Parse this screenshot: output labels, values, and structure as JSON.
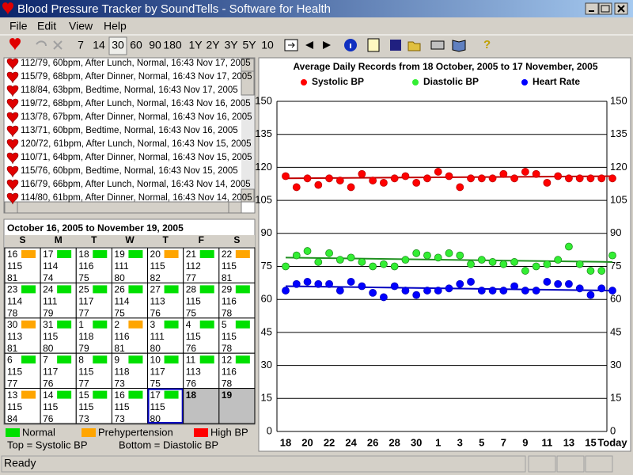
{
  "window": {
    "title": "Blood Pressure Tracker by SoundTells - Software for Health",
    "menu": [
      "File",
      "Edit",
      "View",
      "Help"
    ],
    "toolbar": [
      "7",
      "14",
      "30",
      "60",
      "90",
      "180",
      "1Y",
      "2Y",
      "3Y",
      "5Y",
      "10"
    ],
    "status": "Ready"
  },
  "records": [
    "112/79, 60bpm, After Lunch, Normal, 16:43 Nov 17, 2005",
    "115/79, 68bpm, After Dinner, Normal, 16:43 Nov 17, 2005",
    "118/84, 63bpm, Bedtime, Normal, 16:43 Nov 17, 2005",
    "119/72, 68bpm, After Lunch, Normal, 16:43 Nov 16, 2005",
    "113/78, 67bpm, After Dinner, Normal, 16:43 Nov 16, 2005",
    "113/71, 60bpm, Bedtime, Normal, 16:43 Nov 16, 2005",
    "120/72, 61bpm, After Lunch, Normal, 16:43 Nov 15, 2005",
    "110/71, 64bpm, After Dinner, Normal, 16:43 Nov 15, 2005",
    "115/76, 60bpm, Bedtime, Normal, 16:43 Nov 15, 2005",
    "116/79, 66bpm, After Lunch, Normal, 16:43 Nov 14, 2005",
    "114/80, 61bpm, After Dinner, Normal, 16:43 Nov 14, 2005"
  ],
  "calendar": {
    "title": "October 16, 2005 to November 19, 2005",
    "weekdays": [
      "S",
      "M",
      "T",
      "W",
      "T",
      "F",
      "S"
    ],
    "selected": 32,
    "cells": [
      {
        "day": 16,
        "sys": 115,
        "dia": 81,
        "color": "#ffa500"
      },
      {
        "day": 17,
        "sys": 114,
        "dia": 74,
        "color": "#00e000"
      },
      {
        "day": 18,
        "sys": 116,
        "dia": 75,
        "color": "#00e000"
      },
      {
        "day": 19,
        "sys": 111,
        "dia": 80,
        "color": "#00e000"
      },
      {
        "day": 20,
        "sys": 115,
        "dia": 82,
        "color": "#ffa500"
      },
      {
        "day": 21,
        "sys": 112,
        "dia": 77,
        "color": "#00e000"
      },
      {
        "day": 22,
        "sys": 115,
        "dia": 81,
        "color": "#ffa500"
      },
      {
        "day": 23,
        "sys": 114,
        "dia": 78,
        "color": "#00e000"
      },
      {
        "day": 24,
        "sys": 111,
        "dia": 79,
        "color": "#00e000"
      },
      {
        "day": 25,
        "sys": 117,
        "dia": 77,
        "color": "#00e000"
      },
      {
        "day": 26,
        "sys": 114,
        "dia": 75,
        "color": "#00e000"
      },
      {
        "day": 27,
        "sys": 113,
        "dia": 76,
        "color": "#00e000"
      },
      {
        "day": 28,
        "sys": 115,
        "dia": 75,
        "color": "#00e000"
      },
      {
        "day": 29,
        "sys": 116,
        "dia": 78,
        "color": "#00e000"
      },
      {
        "day": 30,
        "sys": 113,
        "dia": 81,
        "color": "#ffa500"
      },
      {
        "day": 31,
        "sys": 115,
        "dia": 80,
        "color": "#00e000"
      },
      {
        "day": 1,
        "sys": 118,
        "dia": 79,
        "color": "#00e000"
      },
      {
        "day": 2,
        "sys": 116,
        "dia": 81,
        "color": "#ffa500"
      },
      {
        "day": 3,
        "sys": 111,
        "dia": 80,
        "color": "#00e000"
      },
      {
        "day": 4,
        "sys": 115,
        "dia": 76,
        "color": "#00e000"
      },
      {
        "day": 5,
        "sys": 115,
        "dia": 78,
        "color": "#00e000"
      },
      {
        "day": 6,
        "sys": 115,
        "dia": 77,
        "color": "#00e000"
      },
      {
        "day": 7,
        "sys": 117,
        "dia": 76,
        "color": "#00e000"
      },
      {
        "day": 8,
        "sys": 115,
        "dia": 77,
        "color": "#00e000"
      },
      {
        "day": 9,
        "sys": 118,
        "dia": 73,
        "color": "#00e000"
      },
      {
        "day": 10,
        "sys": 117,
        "dia": 75,
        "color": "#00e000"
      },
      {
        "day": 11,
        "sys": 113,
        "dia": 76,
        "color": "#00e000"
      },
      {
        "day": 12,
        "sys": 116,
        "dia": 78,
        "color": "#00e000"
      },
      {
        "day": 13,
        "sys": 115,
        "dia": 84,
        "color": "#ffa500"
      },
      {
        "day": 14,
        "sys": 115,
        "dia": 76,
        "color": "#00e000"
      },
      {
        "day": 15,
        "sys": 115,
        "dia": 73,
        "color": "#00e000"
      },
      {
        "day": 16,
        "sys": 115,
        "dia": 73,
        "color": "#00e000"
      },
      {
        "day": 17,
        "sys": 115,
        "dia": 80,
        "color": "#00e000"
      },
      {
        "day": 18
      },
      {
        "day": 19
      }
    ]
  },
  "legend": {
    "items": [
      {
        "label": "Normal",
        "color": "#00e000"
      },
      {
        "label": "Prehypertension",
        "color": "#ffa500"
      },
      {
        "label": "High BP",
        "color": "#ff0000"
      }
    ],
    "notes": [
      "Top = Systolic BP",
      "Bottom = Diastolic BP"
    ]
  },
  "chart_data": {
    "type": "scatter-trend",
    "title": "Average Daily Records from 18 October, 2005 to 17 November, 2005",
    "categories": [
      "18",
      null,
      "20",
      null,
      "22",
      null,
      "24",
      null,
      "26",
      null,
      "28",
      null,
      "30",
      null,
      "1",
      null,
      "3",
      null,
      "5",
      null,
      "7",
      null,
      "9",
      null,
      "11",
      null,
      "13",
      null,
      "15",
      null,
      "Today"
    ],
    "ylim": [
      0,
      150
    ],
    "yticks": [
      0,
      15,
      30,
      45,
      60,
      75,
      90,
      105,
      120,
      135,
      150
    ],
    "grid": true,
    "series": [
      {
        "name": "Systolic BP",
        "color": "#ff0000",
        "trend_color": "#c00000",
        "values": [
          116,
          111,
          115,
          112,
          115,
          114,
          111,
          117,
          114,
          113,
          115,
          116,
          113,
          115,
          118,
          116,
          111,
          115,
          115,
          115,
          117,
          115,
          118,
          117,
          113,
          116,
          115,
          115,
          115,
          115,
          115
        ],
        "trend": [
          115,
          116
        ]
      },
      {
        "name": "Diastolic BP",
        "color": "#33ee33",
        "trend_color": "#209020",
        "values": [
          75,
          80,
          82,
          77,
          81,
          78,
          79,
          77,
          75,
          76,
          75,
          78,
          81,
          80,
          79,
          81,
          80,
          76,
          78,
          77,
          76,
          77,
          73,
          75,
          76,
          78,
          84,
          76,
          73,
          73,
          80
        ],
        "trend": [
          79,
          77
        ]
      },
      {
        "name": "Heart Rate",
        "color": "#0000ff",
        "trend_color": "#0000c0",
        "values": [
          64,
          67,
          68,
          67,
          67,
          64,
          68,
          66,
          63,
          61,
          66,
          64,
          62,
          64,
          64,
          65,
          67,
          68,
          64,
          64,
          64,
          66,
          64,
          64,
          68,
          67,
          67,
          65,
          62,
          65,
          64
        ],
        "trend": [
          66,
          64
        ]
      }
    ]
  }
}
